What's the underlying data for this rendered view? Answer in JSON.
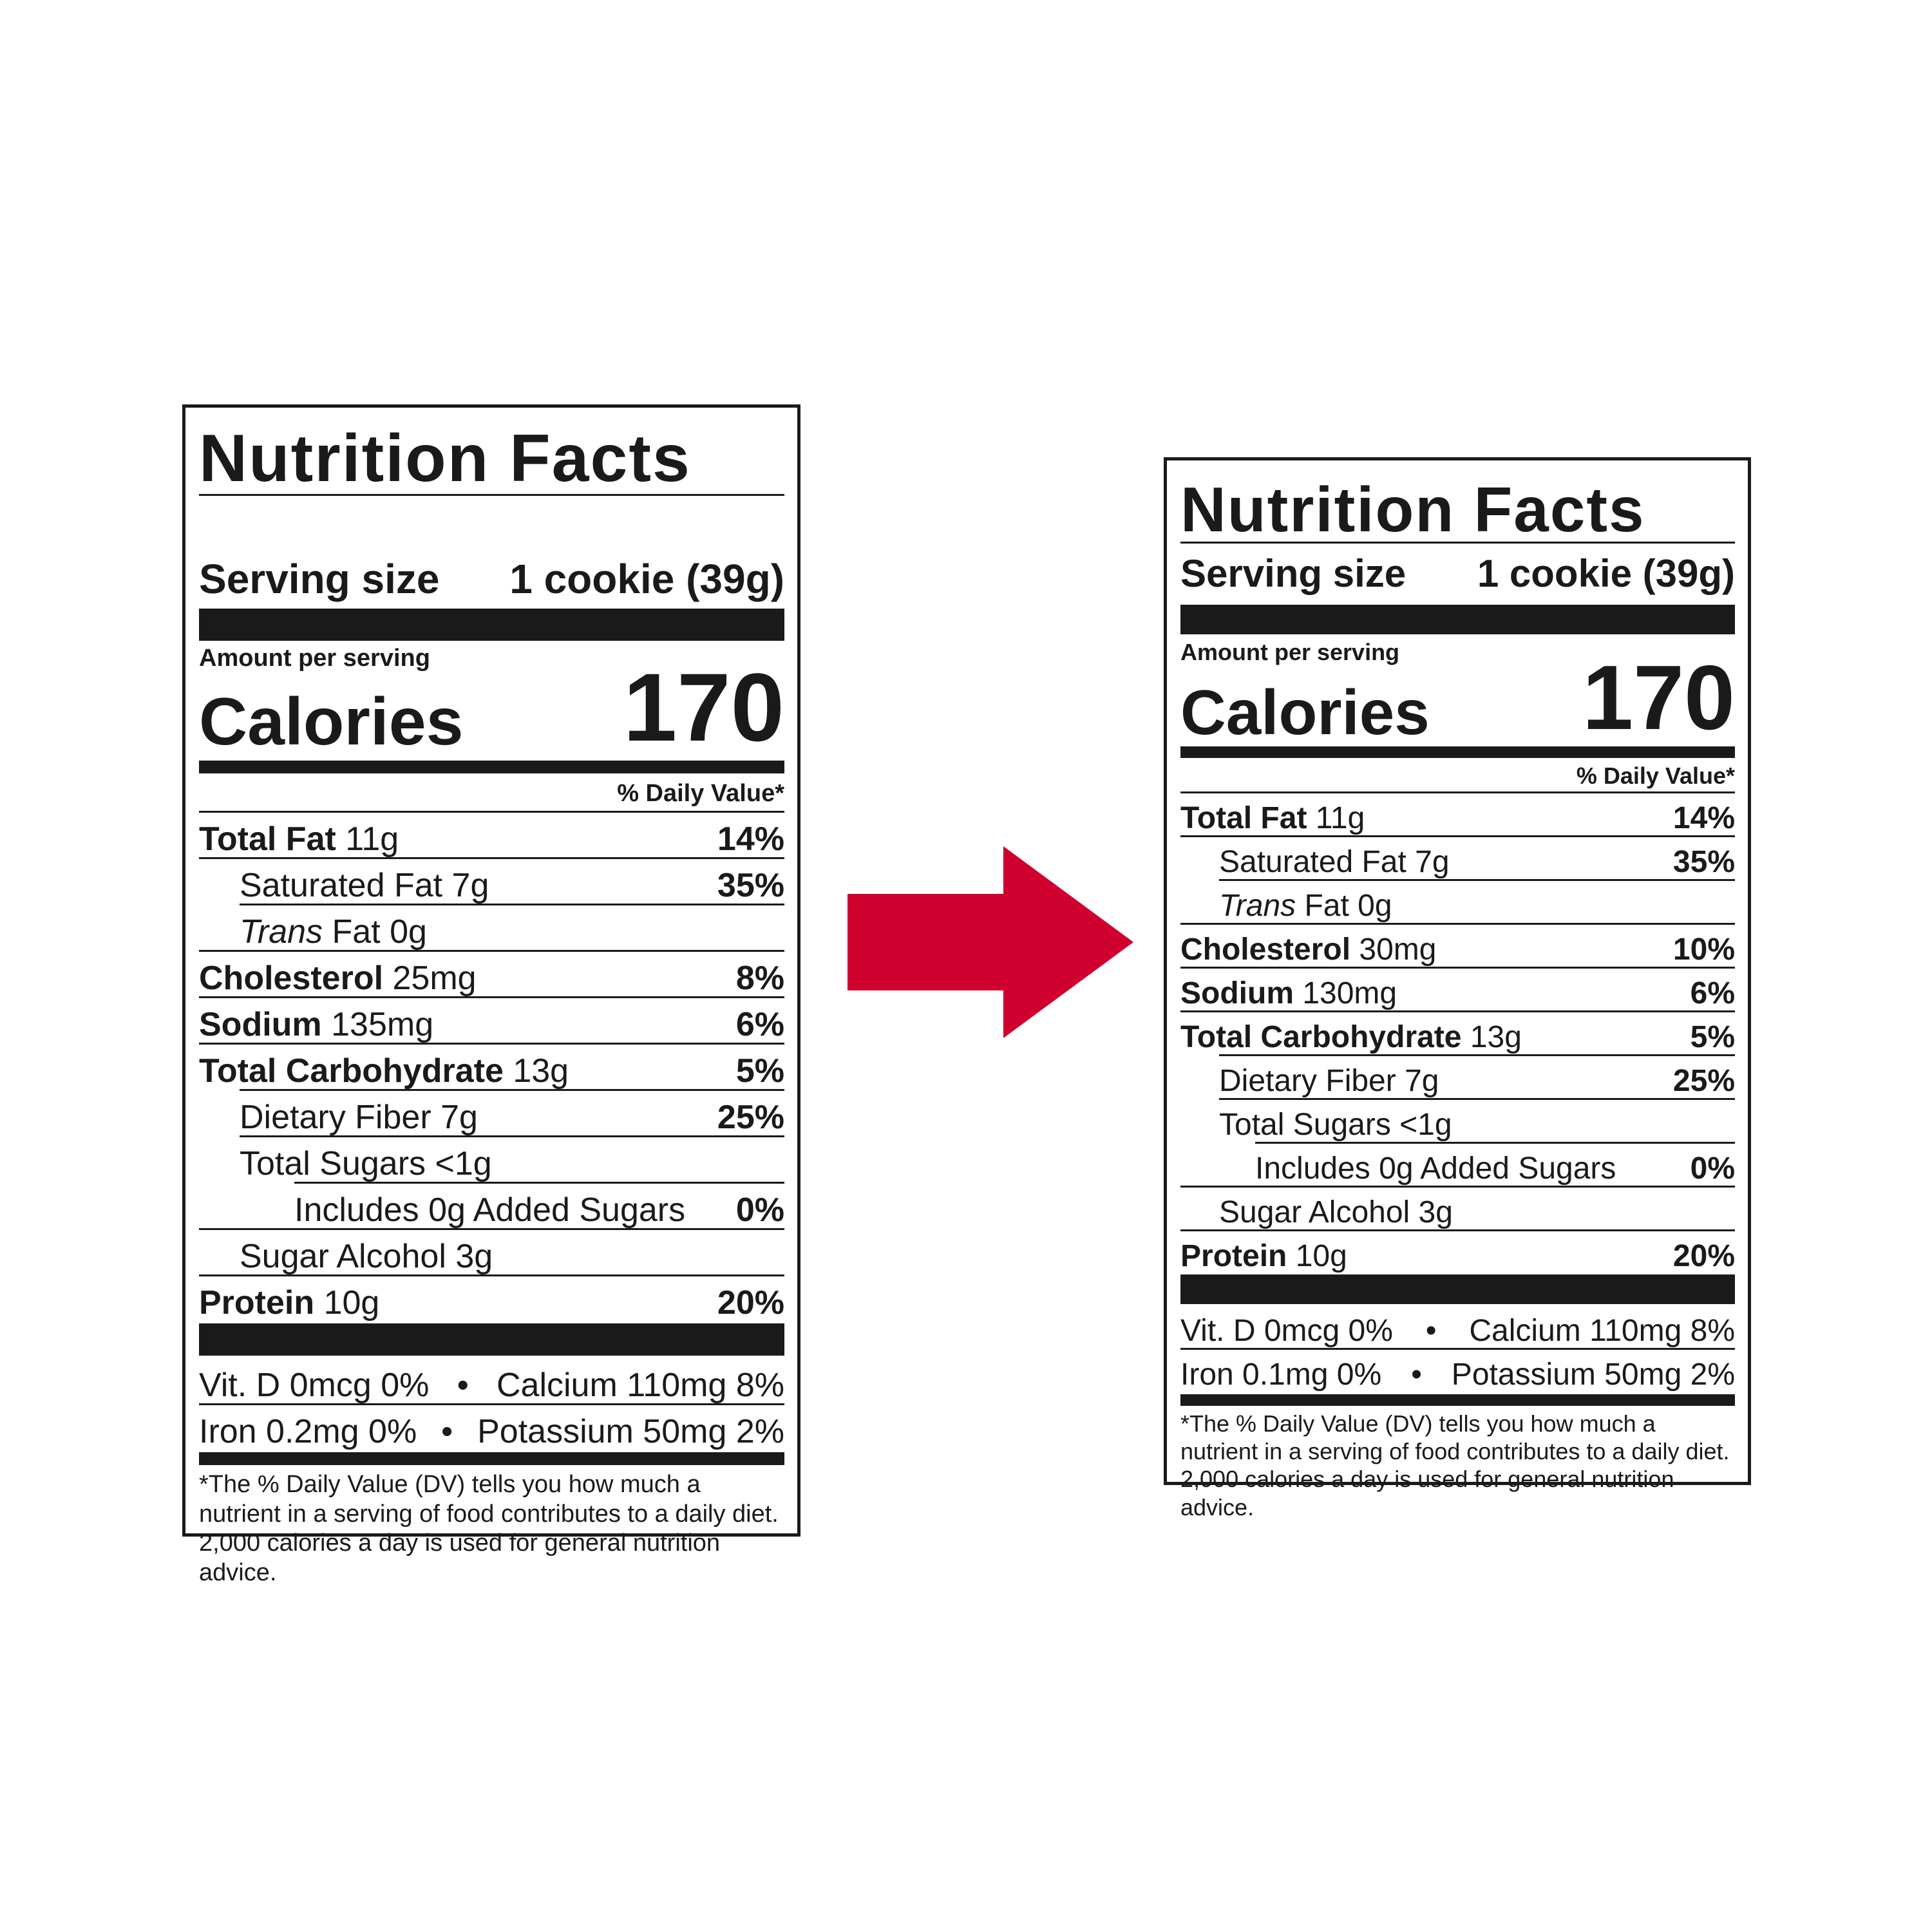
{
  "labels": [
    {
      "title": "Nutrition Facts",
      "serving_label": "Serving size",
      "serving_value": "1 cookie (39g)",
      "amount_per_serving": "Amount per serving",
      "calories_label": "Calories",
      "calories_value": "170",
      "daily_value_header": "% Daily Value*",
      "rows": {
        "total_fat": {
          "name": "Total Fat",
          "amount": " 11g",
          "dv": "14%"
        },
        "saturated_fat": {
          "name": "Saturated Fat 7g",
          "dv": "35%"
        },
        "trans_fat": {
          "italic": "Trans",
          "rest": " Fat 0g"
        },
        "cholesterol": {
          "name": "Cholesterol",
          "amount": " 25mg",
          "dv": "8%"
        },
        "sodium": {
          "name": "Sodium",
          "amount": " 135mg",
          "dv": "6%"
        },
        "total_carbohydrate": {
          "name": "Total Carbohydrate",
          "amount": " 13g",
          "dv": "5%"
        },
        "dietary_fiber": {
          "name": "Dietary Fiber 7g",
          "dv": "25%"
        },
        "total_sugars": {
          "name": "Total Sugars <1g"
        },
        "added_sugars": {
          "name": "Includes 0g Added Sugars",
          "dv": "0%"
        },
        "sugar_alcohol": {
          "name": "Sugar Alcohol 3g"
        },
        "protein": {
          "name": "Protein",
          "amount": " 10g",
          "dv": "20%"
        }
      },
      "minerals": {
        "vit_d": "Vit. D 0mcg 0%",
        "calcium": "Calcium 110mg 8%",
        "iron": "Iron 0.2mg 0%",
        "potassium": "Potassium 50mg 2%",
        "bullet": "•"
      },
      "footnote": "*The % Daily Value (DV) tells you how much a nutrient in a serving of food contributes to a daily diet. 2,000 calories a day is used for general nutrition advice."
    },
    {
      "title": "Nutrition Facts",
      "serving_label": "Serving size",
      "serving_value": "1 cookie (39g)",
      "amount_per_serving": "Amount per serving",
      "calories_label": "Calories",
      "calories_value": "170",
      "daily_value_header": "% Daily Value*",
      "rows": {
        "total_fat": {
          "name": "Total Fat",
          "amount": " 11g",
          "dv": "14%"
        },
        "saturated_fat": {
          "name": "Saturated Fat 7g",
          "dv": "35%"
        },
        "trans_fat": {
          "italic": "Trans",
          "rest": " Fat 0g"
        },
        "cholesterol": {
          "name": "Cholesterol",
          "amount": " 30mg",
          "dv": "10%"
        },
        "sodium": {
          "name": "Sodium",
          "amount": " 130mg",
          "dv": "6%"
        },
        "total_carbohydrate": {
          "name": "Total Carbohydrate",
          "amount": " 13g",
          "dv": "5%"
        },
        "dietary_fiber": {
          "name": "Dietary Fiber 7g",
          "dv": "25%"
        },
        "total_sugars": {
          "name": "Total Sugars <1g"
        },
        "added_sugars": {
          "name": "Includes 0g Added Sugars",
          "dv": "0%"
        },
        "sugar_alcohol": {
          "name": "Sugar Alcohol 3g"
        },
        "protein": {
          "name": "Protein",
          "amount": " 10g",
          "dv": "20%"
        }
      },
      "minerals": {
        "vit_d": "Vit. D 0mcg 0%",
        "calcium": "Calcium 110mg 8%",
        "iron": "Iron 0.1mg 0%",
        "potassium": "Potassium 50mg 2%",
        "bullet": "•"
      },
      "footnote": "*The % Daily Value (DV) tells you how much a nutrient in a serving of food contributes to a daily diet. 2,000 calories a day is used for general nutrition advice."
    }
  ],
  "colors": {
    "ink": "#1a1a1a",
    "arrow": "#d0002e",
    "background": "#ffffff"
  },
  "icons": {
    "arrow": "right-arrow-icon"
  }
}
